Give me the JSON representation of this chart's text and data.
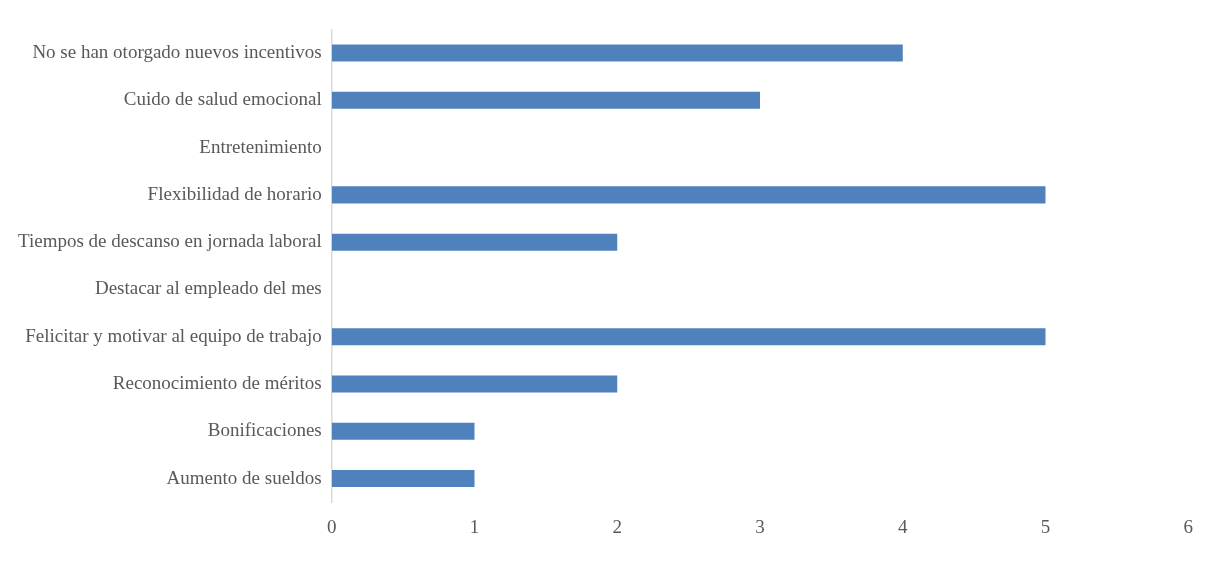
{
  "chart_data": {
    "type": "bar",
    "orientation": "horizontal",
    "categories": [
      "No se han otorgado nuevos incentivos",
      "Cuido de salud emocional",
      "Entretenimiento",
      "Flexibilidad de horario",
      "Tiempos de descanso en jornada laboral",
      "Destacar al empleado del mes",
      "Felicitar y motivar al equipo de trabajo",
      "Reconocimiento de méritos",
      "Bonificaciones",
      "Aumento de sueldos"
    ],
    "values": [
      4,
      3,
      0,
      5,
      2,
      0,
      5,
      2,
      1,
      1
    ],
    "color": "#4f81bd",
    "xlim": [
      0,
      6
    ],
    "xticks": [
      0,
      1,
      2,
      3,
      4,
      5,
      6
    ],
    "grid": false,
    "legend": false
  }
}
